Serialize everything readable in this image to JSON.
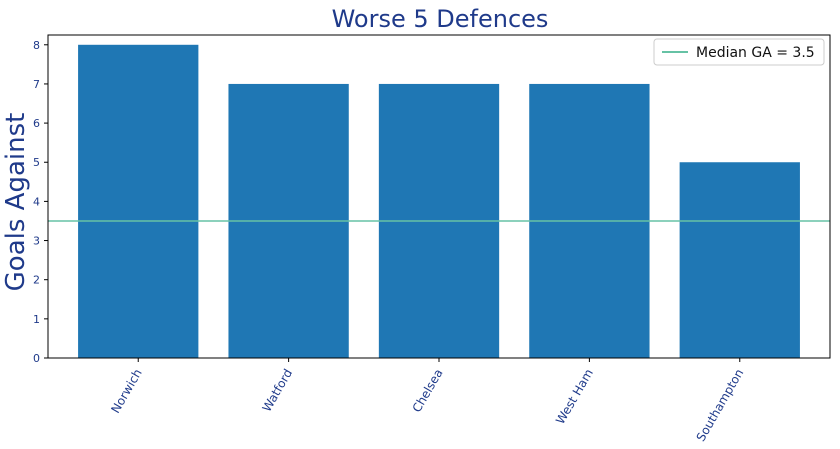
{
  "chart_data": {
    "type": "bar",
    "title": "Worse 5 Defences",
    "xlabel": "",
    "ylabel": "Goals Against",
    "categories": [
      "Norwich",
      "Watford",
      "Chelsea",
      "West Ham",
      "Southampton"
    ],
    "values": [
      8,
      7,
      7,
      7,
      5
    ],
    "ylim": [
      0,
      8.25
    ],
    "yticks": [
      0,
      1,
      2,
      3,
      4,
      5,
      6,
      7,
      8
    ],
    "grid": false,
    "reference_line": {
      "label": "Median GA = 3.5",
      "value": 3.5
    },
    "legend": {
      "position": "top-right"
    },
    "colors": {
      "bar": "#1f77b4",
      "reference_line": "#66c2a5",
      "title": "#1f3a8a",
      "ticks": "#1f3a8a",
      "axis": "#000000"
    }
  }
}
